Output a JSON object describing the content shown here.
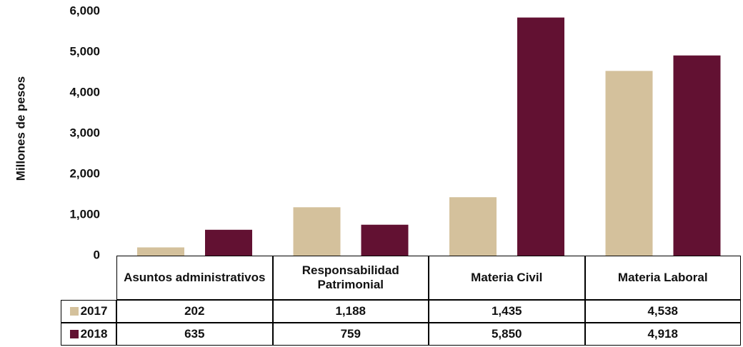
{
  "chart_data": {
    "type": "bar",
    "y_label": "Millones de pesos",
    "categories": [
      "Asuntos administrativos",
      "Responsabilidad Patrimonial",
      "Materia Civil",
      "Materia Laboral"
    ],
    "series": [
      {
        "name": "2017",
        "color": "#d4c19c",
        "values": [
          202,
          1188,
          1435,
          4538
        ],
        "value_labels": [
          "202",
          "1,188",
          "1,435",
          "4,538"
        ]
      },
      {
        "name": "2018",
        "color": "#621132",
        "values": [
          635,
          759,
          5850,
          4918
        ],
        "value_labels": [
          "635",
          "759",
          "5,850",
          "4,918"
        ]
      }
    ],
    "ylim": [
      0,
      6000
    ],
    "yticks": [
      0,
      {
        "value": 1000,
        "label": "1,000"
      },
      {
        "value": 2000,
        "label": "2,000"
      },
      {
        "value": 3000,
        "label": "3,000"
      },
      {
        "value": 4000,
        "label": "4,000"
      },
      {
        "value": 5000,
        "label": "5,000"
      },
      {
        "value": 6000,
        "label": "6,000"
      }
    ],
    "grid": false
  }
}
